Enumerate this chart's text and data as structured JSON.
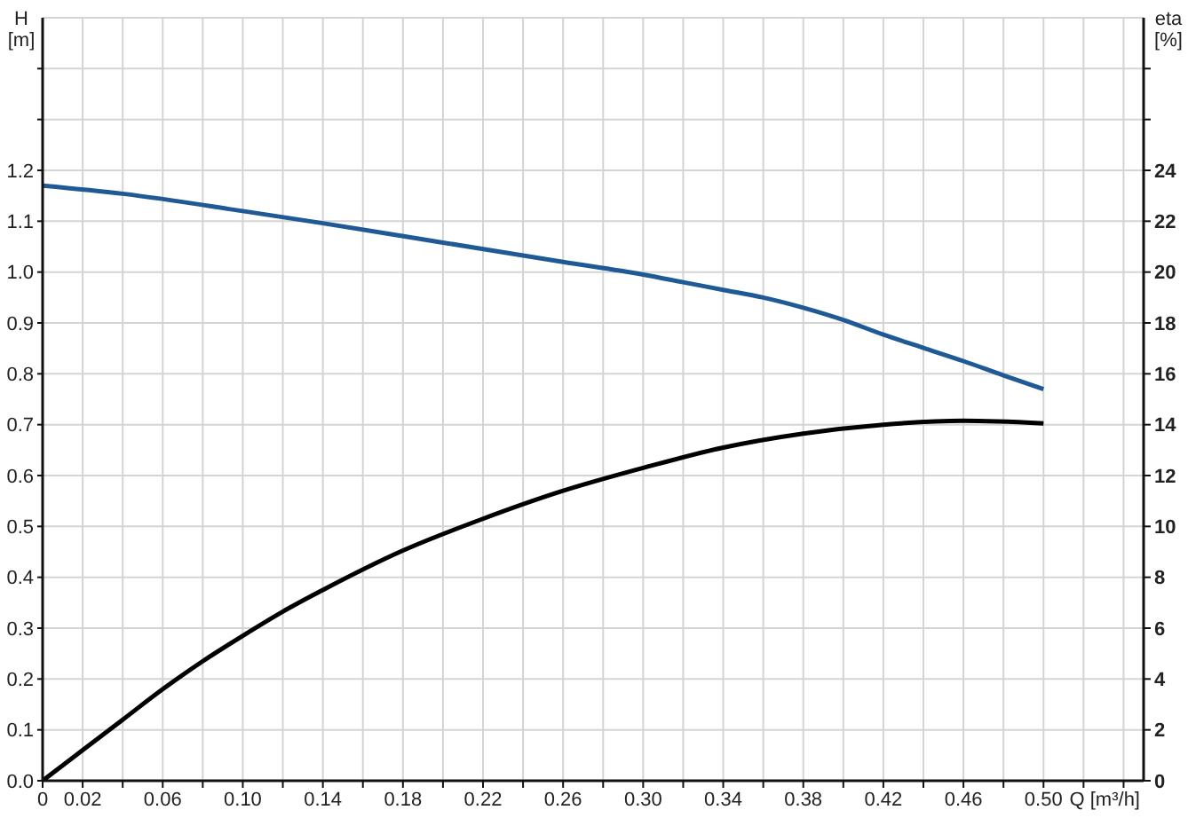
{
  "chart_data": {
    "type": "line",
    "xlabel": "Q [m³/h]",
    "ylabel": "H [m]",
    "y2label": "eta [%]",
    "xlim": [
      0,
      0.55
    ],
    "xticks": [
      0,
      0.02,
      {
        "value": 0.04,
        "label": null
      },
      0.06,
      {
        "value": 0.08,
        "label": null
      },
      {
        "value": 0.1,
        "label": "0.10"
      },
      {
        "value": 0.12,
        "label": null
      },
      0.14,
      {
        "value": 0.16,
        "label": null
      },
      0.18,
      {
        "value": 0.2,
        "label": null
      },
      0.22,
      {
        "value": 0.24,
        "label": null
      },
      0.26,
      {
        "value": 0.28,
        "label": null
      },
      {
        "value": 0.3,
        "label": "0.30"
      },
      {
        "value": 0.32,
        "label": null
      },
      0.34,
      {
        "value": 0.36,
        "label": null
      },
      0.38,
      {
        "value": 0.4,
        "label": null
      },
      0.42,
      {
        "value": 0.44,
        "label": null
      },
      0.46,
      {
        "value": 0.48,
        "label": null
      },
      {
        "value": 0.5,
        "label": "0.50"
      },
      {
        "value": 0.52,
        "label": null
      },
      {
        "value": 0.54,
        "label": null
      }
    ],
    "ylim": [
      0,
      1.5
    ],
    "yticks": [
      {
        "value": 0,
        "label": "0.0"
      },
      0.1,
      0.2,
      0.3,
      0.4,
      0.5,
      0.6,
      0.7,
      0.8,
      0.9,
      {
        "value": 1,
        "label": "1.0"
      },
      1.1,
      1.2,
      {
        "value": 1.3,
        "label": null
      },
      {
        "value": 1.4,
        "label": null
      }
    ],
    "y2lim": [
      0,
      30
    ],
    "y2ticks": [
      0,
      2,
      4,
      6,
      8,
      10,
      12,
      14,
      16,
      18,
      20,
      22,
      24,
      {
        "value": 26,
        "label": null
      },
      {
        "value": 28,
        "label": null
      }
    ],
    "grid": true,
    "marker": "none",
    "line_style": "solid",
    "series": [
      {
        "color": "#1f5a96",
        "x": [
          0,
          0.04,
          0.1,
          0.14,
          0.2,
          0.26,
          0.3,
          0.32,
          0.34,
          0.36,
          0.38,
          0.4,
          0.42,
          0.44,
          0.46,
          0.48,
          0.5
        ],
        "values": [
          1.17,
          1.154,
          1.12,
          1.096,
          1.058,
          1.02,
          0.995,
          0.98,
          0.965,
          0.95,
          0.93,
          0.906,
          0.877,
          0.851,
          0.825,
          0.797,
          0.77
        ]
      },
      {
        "color": "#000000",
        "axis": "y2",
        "x": [
          0,
          0.02,
          0.04,
          0.06,
          0.08,
          0.1,
          0.12,
          0.14,
          0.18,
          0.22,
          0.26,
          0.3,
          0.34,
          0.38,
          0.42,
          0.46,
          0.5
        ],
        "values": [
          0,
          1.2,
          2.4,
          3.6,
          4.7,
          5.7,
          6.65,
          7.5,
          9.05,
          10.3,
          11.4,
          12.3,
          13.1,
          13.65,
          14.0,
          14.15,
          14.05
        ]
      }
    ]
  }
}
